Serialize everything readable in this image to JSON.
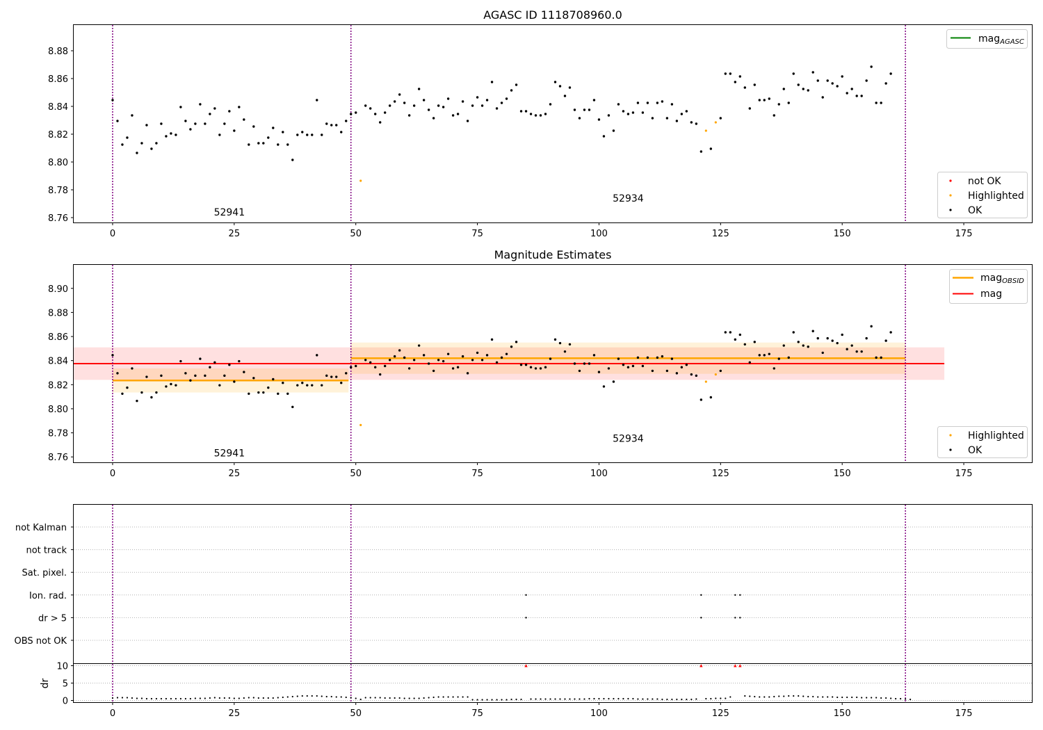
{
  "chart_data": [
    {
      "type": "scatter",
      "title": "AGASC ID 1118708960.0",
      "xlim": [
        -8,
        189
      ],
      "ylim": [
        8.7565,
        8.8985
      ],
      "xticks": [
        0,
        25,
        50,
        75,
        100,
        125,
        150,
        175
      ],
      "yticks": [
        8.76,
        8.78,
        8.8,
        8.82,
        8.84,
        8.86,
        8.88
      ],
      "obs_boundaries": [
        0,
        49,
        163
      ],
      "obs_labels": [
        {
          "text": "52941",
          "x": 24,
          "y": 8.7615
        },
        {
          "text": "52934",
          "x": 106,
          "y": 8.7715
        }
      ],
      "legend_lines": [
        {
          "name": "mag",
          "sub": "AGASC",
          "color": "#008000"
        }
      ],
      "legend_points": [
        {
          "name": "not OK",
          "color": "#ff0000"
        },
        {
          "name": "Highlighted",
          "color": "#ffa500"
        },
        {
          "name": "OK",
          "color": "#000000"
        }
      ]
    },
    {
      "type": "scatter",
      "title": "Magnitude Estimates",
      "xlim": [
        -8,
        189
      ],
      "ylim": [
        8.7555,
        8.9195
      ],
      "xticks": [
        0,
        25,
        50,
        75,
        100,
        125,
        150,
        175
      ],
      "yticks": [
        8.76,
        8.78,
        8.8,
        8.82,
        8.84,
        8.86,
        8.88,
        8.9
      ],
      "obs_labels": [
        {
          "text": "52941",
          "x": 24,
          "y": 8.7605
        },
        {
          "text": "52934",
          "x": 106,
          "y": 8.7725
        }
      ],
      "mag": {
        "value": 8.8375,
        "band": [
          8.824,
          8.851
        ],
        "x_range": [
          -8,
          171
        ],
        "color": "#ff0000"
      },
      "obsid_mags": [
        {
          "value": 8.8235,
          "band": [
            8.8135,
            8.8335
          ],
          "x_range": [
            0,
            48.5
          ]
        },
        {
          "value": 8.842,
          "band": [
            8.829,
            8.855
          ],
          "x_range": [
            49,
            163
          ]
        }
      ],
      "legend_lines": [
        {
          "name": "mag",
          "sub": "OBSID",
          "color": "#ffa500"
        },
        {
          "name": "mag",
          "sub": "",
          "color": "#ff0000"
        }
      ],
      "legend_points": [
        {
          "name": "Highlighted",
          "color": "#ffa500"
        },
        {
          "name": "OK",
          "color": "#000000"
        }
      ]
    },
    {
      "type": "scatter",
      "categories": [
        "not Kalman",
        "not track",
        "Sat. pixel.",
        "Ion. rad.",
        "dr > 5",
        "OBS not OK"
      ],
      "flags": [
        {
          "category": "Ion. rad.",
          "x": [
            85,
            121,
            128,
            129
          ]
        },
        {
          "category": "dr > 5",
          "x": [
            85,
            121,
            128,
            129
          ]
        }
      ],
      "dr": {
        "ylabel": "dr",
        "yticks": [
          0,
          5,
          10
        ],
        "ylim": [
          -0.5,
          10.5
        ],
        "clipped_x": [
          85,
          121,
          128,
          129
        ],
        "clip_value": 10
      }
    }
  ],
  "series": {
    "mag_obs": [
      8.8445,
      8.8295,
      8.8125,
      8.8175,
      8.8335,
      8.8065,
      8.8135,
      8.8265,
      8.8095,
      8.8135,
      8.8275,
      8.8185,
      8.8205,
      8.8195,
      8.8395,
      8.8295,
      8.8235,
      8.8275,
      8.8415,
      8.8275,
      8.8345,
      8.8385,
      8.8195,
      8.8275,
      8.8365,
      8.8225,
      8.8395,
      8.8305,
      8.8125,
      8.8255,
      8.8135,
      8.8135,
      8.8175,
      8.8245,
      8.8125,
      8.8215,
      8.8125,
      8.8015,
      8.8195,
      8.8215,
      8.8195,
      8.8195,
      8.8445,
      8.8195,
      8.8275,
      8.8265,
      8.8265,
      8.8215,
      8.8295,
      8.8345,
      8.8355,
      8.7865,
      8.8405,
      8.8385,
      8.8345,
      8.8285,
      8.8355,
      8.8405,
      8.8435,
      8.8485,
      8.8425,
      8.8335,
      8.8405,
      8.8525,
      8.8445,
      8.8375,
      8.8315,
      8.8405,
      8.8395,
      8.8455,
      8.8335,
      8.8345,
      8.8435,
      8.8295,
      8.8405,
      8.8465,
      8.8405,
      8.8445,
      8.8575,
      8.8385,
      8.8425,
      8.8455,
      8.8515,
      8.8555,
      8.8365,
      8.8365,
      8.8345,
      8.8335,
      8.8335,
      8.8345,
      8.8415,
      8.8575,
      8.8545,
      8.8475,
      8.8535,
      8.8375,
      8.8315,
      8.8375,
      8.8375,
      8.8445,
      8.8305,
      8.8185,
      8.8335,
      8.8225,
      8.8415,
      8.8365,
      8.8345,
      8.8355,
      8.8425,
      8.8355,
      8.8425,
      8.8315,
      8.8425,
      8.8435,
      8.8315,
      8.8415,
      8.8295,
      8.8345,
      8.8365,
      8.8285,
      8.8275,
      8.8075,
      8.8225,
      8.8095,
      8.8285,
      8.8315,
      8.8635,
      8.8635,
      8.8575,
      8.8615,
      8.8535,
      8.8385,
      8.8555,
      8.8445,
      8.8445,
      8.8455,
      8.8335,
      8.8415,
      8.8525,
      8.8425,
      8.8635,
      8.8555,
      8.8525,
      8.8515,
      8.8645,
      8.8585,
      8.8465,
      8.8585,
      8.8565,
      8.8545,
      8.8615,
      8.8495,
      8.8525,
      8.8475,
      8.8475,
      8.8585,
      8.8685,
      8.8425,
      8.8425,
      8.8565,
      8.8635
    ],
    "highlighted_x": [
      51,
      122,
      124
    ],
    "dr_values": [
      0.7,
      0.8,
      0.8,
      0.8,
      0.7,
      0.6,
      0.6,
      0.5,
      0.5,
      0.5,
      0.5,
      0.5,
      0.5,
      0.5,
      0.5,
      0.5,
      0.5,
      0.6,
      0.6,
      0.6,
      0.7,
      0.8,
      0.7,
      0.7,
      0.7,
      0.6,
      0.6,
      0.7,
      0.8,
      0.8,
      0.7,
      0.7,
      0.7,
      0.7,
      0.8,
      0.9,
      1.0,
      1.1,
      1.2,
      1.3,
      1.3,
      1.3,
      1.3,
      1.2,
      1.1,
      1.1,
      1.0,
      1.0,
      0.9,
      0.8,
      0.6,
      0.3,
      0.8,
      0.8,
      0.8,
      0.8,
      0.7,
      0.7,
      0.7,
      0.7,
      0.6,
      0.6,
      0.6,
      0.6,
      0.7,
      0.8,
      0.9,
      1.0,
      1.0,
      1.0,
      1.0,
      1.0,
      1.0,
      1.0,
      0.2,
      0.2,
      0.2,
      0.2,
      0.2,
      0.2,
      0.2,
      0.2,
      0.3,
      0.3,
      0.3,
      10,
      0.4,
      0.4,
      0.4,
      0.4,
      0.4,
      0.4,
      0.4,
      0.4,
      0.4,
      0.4,
      0.4,
      0.4,
      0.5,
      0.5,
      0.5,
      0.5,
      0.5,
      0.5,
      0.5,
      0.5,
      0.5,
      0.5,
      0.4,
      0.4,
      0.4,
      0.4,
      0.4,
      0.3,
      0.3,
      0.3,
      0.3,
      0.3,
      0.3,
      0.3,
      0.4,
      10,
      0.5,
      0.5,
      0.6,
      0.6,
      0.6,
      1.0,
      10,
      10,
      1.3,
      1.2,
      1.1,
      1.0,
      1.0,
      1.0,
      1.1,
      1.2,
      1.2,
      1.3,
      1.3,
      1.3,
      1.2,
      1.1,
      1.1,
      1.0,
      1.0,
      1.0,
      1.0,
      0.9,
      0.9,
      0.9,
      0.9,
      0.9,
      0.8,
      0.8,
      0.8,
      0.8,
      0.7,
      0.7,
      0.6,
      0.5,
      0.5,
      0.4,
      0.3
    ]
  }
}
